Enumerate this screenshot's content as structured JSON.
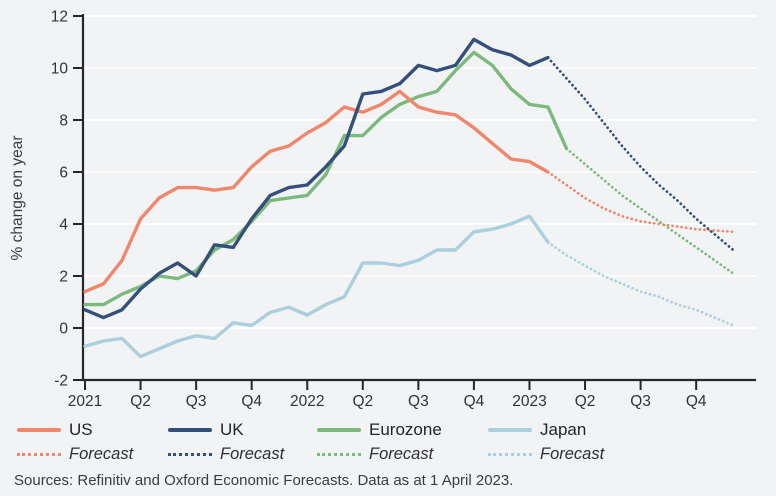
{
  "colors": {
    "background": "#F2F3F5",
    "gridline": "#FFFFFF",
    "axis": "#26272D",
    "tick_text": "#323338"
  },
  "legend": {
    "forecast_label": "Forecast"
  },
  "sources_text": "Sources: Refinitiv and Oxford Economic Forecasts. Data as at 1 April 2023.",
  "chart_data": {
    "type": "line",
    "title": "",
    "xlabel": "",
    "ylabel": "% change on year",
    "ylim": [
      -2,
      12
    ],
    "y_ticks": [
      -2,
      0,
      2,
      4,
      6,
      8,
      10,
      12
    ],
    "gridline_values": [
      0,
      2,
      4,
      6,
      8,
      10,
      12
    ],
    "grid": "horizontal white gridlines, zero line slightly heavier",
    "x_frequency": "monthly",
    "x_range": [
      "2021-01",
      "2023-12"
    ],
    "x_tick_labels": [
      "2021",
      "Q2",
      "Q3",
      "Q4",
      "2022",
      "Q2",
      "Q3",
      "Q4",
      "2023",
      "Q2",
      "Q3",
      "Q4"
    ],
    "legend_position": "bottom",
    "forecast_style": "dotted continuation of each series",
    "series": [
      {
        "name": "US",
        "color": "#F0866B",
        "actual_start": "2021-01",
        "actual": [
          1.4,
          1.7,
          2.6,
          4.2,
          5.0,
          5.4,
          5.4,
          5.3,
          5.4,
          6.2,
          6.8,
          7.0,
          7.5,
          7.9,
          8.5,
          8.3,
          8.6,
          9.1,
          8.5,
          8.3,
          8.2,
          7.7,
          7.1,
          6.5,
          6.4,
          6.0
        ],
        "forecast": [
          6.0,
          5.5,
          5.0,
          4.6,
          4.3,
          4.1,
          4.0,
          3.9,
          3.8,
          3.75,
          3.7
        ]
      },
      {
        "name": "UK",
        "color": "#34507A",
        "actual_start": "2021-01",
        "actual": [
          0.7,
          0.4,
          0.7,
          1.5,
          2.1,
          2.5,
          2.0,
          3.2,
          3.1,
          4.2,
          5.1,
          5.4,
          5.5,
          6.2,
          7.0,
          9.0,
          9.1,
          9.4,
          10.1,
          9.9,
          10.1,
          11.1,
          10.7,
          10.5,
          10.1,
          10.4
        ],
        "forecast": [
          10.4,
          9.6,
          8.8,
          7.9,
          7.0,
          6.2,
          5.5,
          4.9,
          4.2,
          3.6,
          3.0
        ]
      },
      {
        "name": "Eurozone",
        "color": "#7CB97D",
        "actual_start": "2021-01",
        "actual": [
          0.9,
          0.9,
          1.3,
          1.6,
          2.0,
          1.9,
          2.2,
          3.0,
          3.4,
          4.1,
          4.9,
          5.0,
          5.1,
          5.9,
          7.4,
          7.4,
          8.1,
          8.6,
          8.9,
          9.1,
          9.9,
          10.6,
          10.1,
          9.2,
          8.6,
          8.5,
          6.9
        ],
        "forecast": [
          6.9,
          6.3,
          5.7,
          5.1,
          4.6,
          4.1,
          3.6,
          3.1,
          2.6,
          2.1
        ]
      },
      {
        "name": "Japan",
        "color": "#ABCFDC",
        "actual_start": "2021-01",
        "actual": [
          -0.7,
          -0.5,
          -0.4,
          -1.1,
          -0.8,
          -0.5,
          -0.3,
          -0.4,
          0.2,
          0.1,
          0.6,
          0.8,
          0.5,
          0.9,
          1.2,
          2.5,
          2.5,
          2.4,
          2.6,
          3.0,
          3.0,
          3.7,
          3.8,
          4.0,
          4.3,
          3.3
        ],
        "forecast": [
          3.3,
          2.8,
          2.4,
          2.0,
          1.7,
          1.4,
          1.2,
          0.9,
          0.7,
          0.4,
          0.1
        ]
      }
    ]
  }
}
